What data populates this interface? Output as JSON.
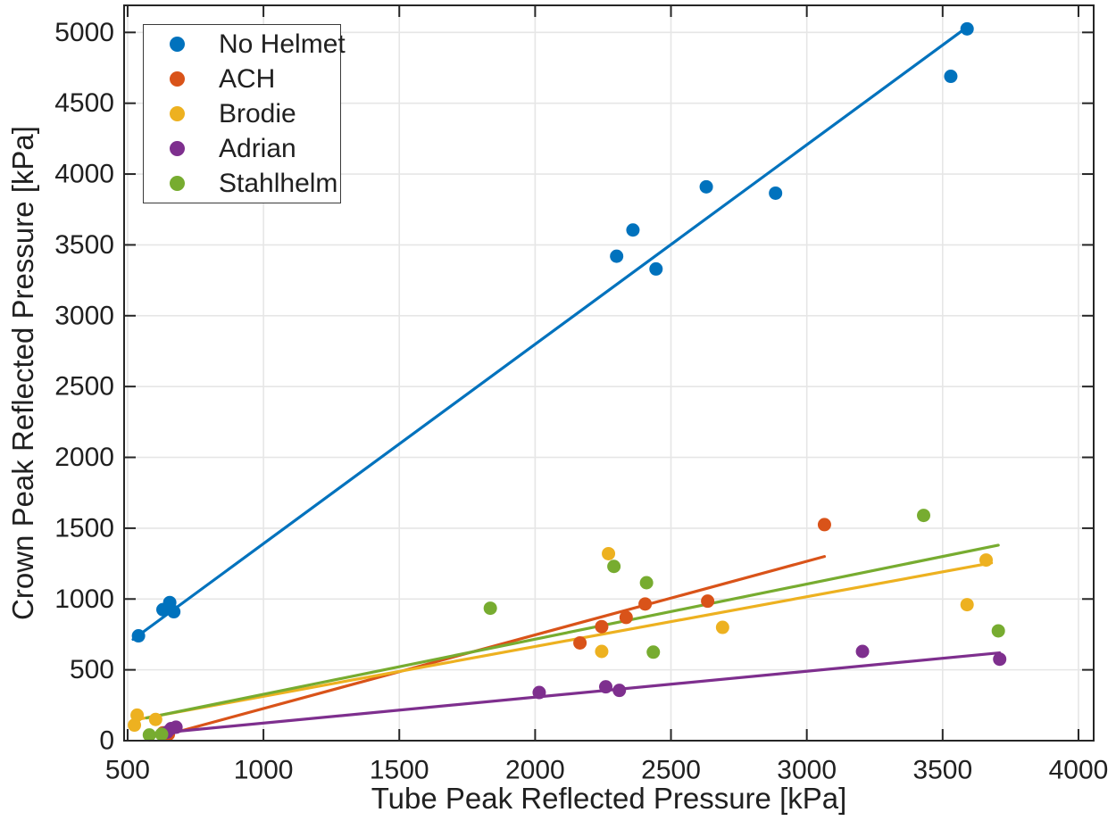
{
  "chart_data": {
    "type": "scatter",
    "title": "",
    "xlabel": "Tube Peak Reflected Pressure [kPa]",
    "ylabel": "Crown Peak Reflected Pressure [kPa]",
    "xlim": [
      487,
      4056
    ],
    "ylim": [
      0,
      5191
    ],
    "xticks": [
      500,
      1000,
      1500,
      2000,
      2500,
      3000,
      3500,
      4000
    ],
    "yticks": [
      0,
      500,
      1000,
      1500,
      2000,
      2500,
      3000,
      3500,
      4000,
      4500,
      5000
    ],
    "grid": true,
    "legend_position": "top-left",
    "axis_color": "#262626",
    "grid_color": "#e6e6e6",
    "background_color": "#ffffff",
    "series": [
      {
        "name": "No Helmet",
        "color": "#0072BD",
        "points": [
          [
            540,
            740
          ],
          [
            630,
            925
          ],
          [
            655,
            975
          ],
          [
            670,
            910
          ],
          [
            2300,
            3420
          ],
          [
            2360,
            3605
          ],
          [
            2445,
            3330
          ],
          [
            2630,
            3910
          ],
          [
            2885,
            3865
          ],
          [
            3530,
            4690
          ],
          [
            3590,
            5025
          ]
        ],
        "trend": [
          [
            520,
            715
          ],
          [
            3592,
            5040
          ]
        ]
      },
      {
        "name": "ACH",
        "color": "#D95319",
        "points": [
          [
            630,
            55
          ],
          [
            650,
            45
          ],
          [
            2165,
            690
          ],
          [
            2245,
            805
          ],
          [
            2335,
            870
          ],
          [
            2405,
            965
          ],
          [
            2635,
            985
          ],
          [
            3065,
            1525
          ]
        ],
        "trend": [
          [
            650,
            45
          ],
          [
            3065,
            1300
          ]
        ]
      },
      {
        "name": "Brodie",
        "color": "#EDB120",
        "points": [
          [
            525,
            110
          ],
          [
            535,
            180
          ],
          [
            603,
            150
          ],
          [
            2245,
            630
          ],
          [
            2270,
            1320
          ],
          [
            2690,
            800
          ],
          [
            3590,
            960
          ],
          [
            3660,
            1275
          ]
        ],
        "trend": [
          [
            550,
            155
          ],
          [
            3680,
            1255
          ]
        ]
      },
      {
        "name": "Adrian",
        "color": "#7E2F8E",
        "points": [
          [
            645,
            60
          ],
          [
            660,
            85
          ],
          [
            678,
            95
          ],
          [
            2015,
            340
          ],
          [
            2260,
            380
          ],
          [
            2310,
            355
          ],
          [
            3205,
            630
          ],
          [
            3710,
            575
          ]
        ],
        "trend": [
          [
            650,
            60
          ],
          [
            3710,
            620
          ]
        ]
      },
      {
        "name": "Stahlhelm",
        "color": "#77AC30",
        "points": [
          [
            580,
            40
          ],
          [
            625,
            45
          ],
          [
            1835,
            935
          ],
          [
            2290,
            1230
          ],
          [
            2410,
            1115
          ],
          [
            2435,
            625
          ],
          [
            3430,
            1590
          ],
          [
            3705,
            775
          ]
        ],
        "trend": [
          [
            570,
            160
          ],
          [
            3705,
            1380
          ]
        ]
      }
    ]
  }
}
